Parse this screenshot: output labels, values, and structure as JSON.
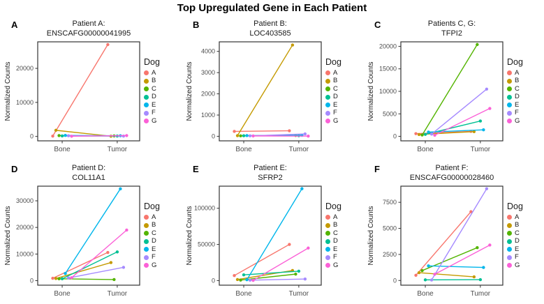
{
  "title": "Top Upregulated Gene in Each Patient",
  "axis": {
    "ylabel": "Normalized Counts",
    "x_categories": [
      "Bone",
      "Tumor"
    ]
  },
  "legend": {
    "title": "Dog",
    "items": [
      {
        "label": "A",
        "color": "#F8766D"
      },
      {
        "label": "B",
        "color": "#C49A00"
      },
      {
        "label": "C",
        "color": "#53B400"
      },
      {
        "label": "D",
        "color": "#00C094"
      },
      {
        "label": "E",
        "color": "#00B6EB"
      },
      {
        "label": "F",
        "color": "#A58AFF"
      },
      {
        "label": "G",
        "color": "#FB61D7"
      }
    ]
  },
  "chart_data": [
    {
      "type": "line",
      "letter": "A",
      "title_line1": "Patient A:",
      "title_line2": "ENSCAFG00000041995",
      "x": [
        "Bone",
        "Tumor"
      ],
      "yticks": [
        0,
        10000,
        20000
      ],
      "ylim": [
        -1300,
        27800
      ],
      "series": [
        {
          "name": "A",
          "values": [
            100,
            27000
          ]
        },
        {
          "name": "B",
          "values": [
            1800,
            60
          ]
        },
        {
          "name": "C",
          "values": [
            250,
            150
          ]
        },
        {
          "name": "D",
          "values": [
            150,
            120
          ]
        },
        {
          "name": "E",
          "values": [
            300,
            200
          ]
        },
        {
          "name": "F",
          "values": [
            200,
            100
          ]
        },
        {
          "name": "G",
          "values": [
            60,
            250
          ]
        }
      ]
    },
    {
      "type": "line",
      "letter": "B",
      "title_line1": "Patient B:",
      "title_line2": "LOC403585",
      "x": [
        "Bone",
        "Tumor"
      ],
      "yticks": [
        0,
        1000,
        2000,
        3000,
        4000
      ],
      "ylim": [
        -215,
        4450
      ],
      "series": [
        {
          "name": "A",
          "values": [
            230,
            260
          ]
        },
        {
          "name": "B",
          "values": [
            30,
            4300
          ]
        },
        {
          "name": "C",
          "values": [
            20,
            40
          ]
        },
        {
          "name": "D",
          "values": [
            25,
            30
          ]
        },
        {
          "name": "E",
          "values": [
            35,
            45
          ]
        },
        {
          "name": "F",
          "values": [
            20,
            110
          ]
        },
        {
          "name": "G",
          "values": [
            15,
            10
          ]
        }
      ]
    },
    {
      "type": "line",
      "letter": "C",
      "title_line1": "Patients C, G:",
      "title_line2": "TFPI2",
      "x": [
        "Bone",
        "Tumor"
      ],
      "yticks": [
        0,
        5000,
        10000,
        15000,
        20000
      ],
      "ylim": [
        -1000,
        21000
      ],
      "series": [
        {
          "name": "A",
          "values": [
            600,
            1100
          ]
        },
        {
          "name": "B",
          "values": [
            400,
            1050
          ]
        },
        {
          "name": "C",
          "values": [
            300,
            20400
          ]
        },
        {
          "name": "D",
          "values": [
            450,
            3400
          ]
        },
        {
          "name": "E",
          "values": [
            950,
            1450
          ]
        },
        {
          "name": "F",
          "values": [
            500,
            10500
          ]
        },
        {
          "name": "G",
          "values": [
            250,
            6200
          ]
        }
      ]
    },
    {
      "type": "line",
      "letter": "D",
      "title_line1": "Patient D:",
      "title_line2": "COL11A1",
      "x": [
        "Bone",
        "Tumor"
      ],
      "yticks": [
        0,
        10000,
        20000,
        30000
      ],
      "ylim": [
        -1700,
        35500
      ],
      "series": [
        {
          "name": "A",
          "values": [
            900,
            10600
          ]
        },
        {
          "name": "B",
          "values": [
            800,
            6800
          ]
        },
        {
          "name": "C",
          "values": [
            700,
            400
          ]
        },
        {
          "name": "D",
          "values": [
            700,
            10800
          ]
        },
        {
          "name": "E",
          "values": [
            2700,
            34500
          ]
        },
        {
          "name": "F",
          "values": [
            1000,
            5000
          ]
        },
        {
          "name": "G",
          "values": [
            1100,
            19000
          ]
        }
      ]
    },
    {
      "type": "line",
      "letter": "E",
      "title_line1": "Patient E:",
      "title_line2": "SFRP2",
      "x": [
        "Bone",
        "Tumor"
      ],
      "yticks": [
        0,
        50000,
        100000
      ],
      "ylim": [
        -6300,
        130500
      ],
      "series": [
        {
          "name": "A",
          "values": [
            7000,
            50000
          ]
        },
        {
          "name": "B",
          "values": [
            1500,
            14000
          ]
        },
        {
          "name": "C",
          "values": [
            700,
            9000
          ]
        },
        {
          "name": "D",
          "values": [
            8000,
            13000
          ]
        },
        {
          "name": "E",
          "values": [
            1200,
            127000
          ]
        },
        {
          "name": "F",
          "values": [
            600,
            2200
          ]
        },
        {
          "name": "G",
          "values": [
            400,
            45000
          ]
        }
      ]
    },
    {
      "type": "line",
      "letter": "F",
      "title_line1": "Patient F:",
      "title_line2": "ENSCAFG00000028460",
      "x": [
        "Bone",
        "Tumor"
      ],
      "yticks": [
        0,
        2500,
        5000,
        7500
      ],
      "ylim": [
        -450,
        9050
      ],
      "series": [
        {
          "name": "A",
          "values": [
            500,
            6600
          ]
        },
        {
          "name": "B",
          "values": [
            750,
            350
          ]
        },
        {
          "name": "C",
          "values": [
            950,
            3150
          ]
        },
        {
          "name": "D",
          "values": [
            60,
            80
          ]
        },
        {
          "name": "E",
          "values": [
            1400,
            1250
          ]
        },
        {
          "name": "F",
          "values": [
            50,
            8800
          ]
        },
        {
          "name": "G",
          "values": [
            600,
            3400
          ]
        }
      ]
    }
  ]
}
